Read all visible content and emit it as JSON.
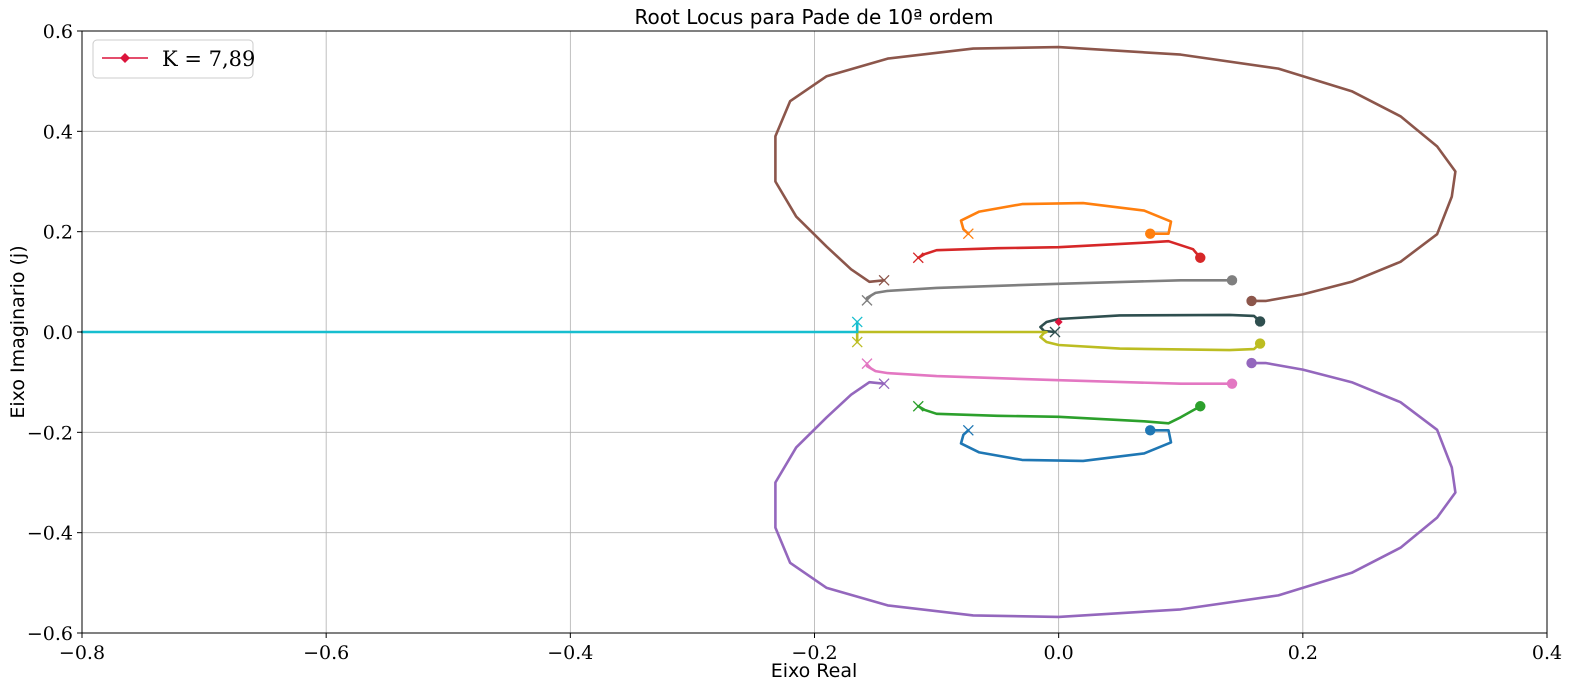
{
  "chart_data": {
    "type": "line",
    "title": "Root Locus para Pade de 10ª ordem",
    "xlabel": "Eixo Real",
    "ylabel": "Eixo Imaginario (j)",
    "xlim": [
      -0.8,
      0.4
    ],
    "ylim": [
      -0.6,
      0.6
    ],
    "xticks": [
      -0.8,
      -0.6,
      -0.4,
      -0.2,
      0.0,
      0.2,
      0.4
    ],
    "xtick_labels": [
      "−0.8",
      "−0.6",
      "−0.4",
      "−0.2",
      "0.0",
      "0.2",
      "0.4"
    ],
    "yticks": [
      -0.6,
      -0.4,
      -0.2,
      0.0,
      0.2,
      0.4,
      0.6
    ],
    "ytick_labels": [
      "−0.6",
      "−0.4",
      "−0.2",
      "0.0",
      "0.2",
      "0.4",
      "0.6"
    ],
    "grid": true,
    "legend": {
      "placement": "top-left",
      "label": "K = 7,89",
      "color": "#dc143c"
    },
    "series": [
      {
        "color": "#9467bd",
        "points": [
          [
            0.158,
            -0.062
          ],
          [
            0.17,
            -0.062
          ],
          [
            0.2,
            -0.075
          ],
          [
            0.24,
            -0.1
          ],
          [
            0.28,
            -0.14
          ],
          [
            0.31,
            -0.195
          ],
          [
            0.322,
            -0.27
          ],
          [
            0.325,
            -0.32
          ],
          [
            0.31,
            -0.37
          ],
          [
            0.28,
            -0.43
          ],
          [
            0.24,
            -0.48
          ],
          [
            0.18,
            -0.525
          ],
          [
            0.1,
            -0.553
          ],
          [
            0.0,
            -0.568
          ],
          [
            -0.07,
            -0.565
          ],
          [
            -0.14,
            -0.545
          ],
          [
            -0.19,
            -0.51
          ],
          [
            -0.22,
            -0.46
          ],
          [
            -0.232,
            -0.39
          ],
          [
            -0.232,
            -0.3
          ],
          [
            -0.215,
            -0.23
          ],
          [
            -0.19,
            -0.17
          ],
          [
            -0.17,
            -0.125
          ],
          [
            -0.155,
            -0.1
          ],
          [
            -0.143,
            -0.103
          ]
        ]
      },
      {
        "color": "#8c564b",
        "points": [
          [
            0.158,
            0.062
          ],
          [
            0.17,
            0.062
          ],
          [
            0.2,
            0.075
          ],
          [
            0.24,
            0.1
          ],
          [
            0.28,
            0.14
          ],
          [
            0.31,
            0.195
          ],
          [
            0.322,
            0.27
          ],
          [
            0.325,
            0.32
          ],
          [
            0.31,
            0.37
          ],
          [
            0.28,
            0.43
          ],
          [
            0.24,
            0.48
          ],
          [
            0.18,
            0.525
          ],
          [
            0.1,
            0.553
          ],
          [
            0.0,
            0.568
          ],
          [
            -0.07,
            0.565
          ],
          [
            -0.14,
            0.545
          ],
          [
            -0.19,
            0.51
          ],
          [
            -0.22,
            0.46
          ],
          [
            -0.232,
            0.39
          ],
          [
            -0.232,
            0.3
          ],
          [
            -0.215,
            0.23
          ],
          [
            -0.19,
            0.17
          ],
          [
            -0.17,
            0.125
          ],
          [
            -0.155,
            0.1
          ],
          [
            -0.143,
            0.103
          ]
        ]
      },
      {
        "color": "#ff7f0e",
        "points": [
          [
            0.075,
            0.196
          ],
          [
            0.09,
            0.196
          ],
          [
            0.092,
            0.22
          ],
          [
            0.07,
            0.242
          ],
          [
            0.02,
            0.257
          ],
          [
            -0.03,
            0.255
          ],
          [
            -0.065,
            0.24
          ],
          [
            -0.08,
            0.222
          ],
          [
            -0.078,
            0.205
          ],
          [
            -0.074,
            0.196
          ]
        ]
      },
      {
        "color": "#1f77b4",
        "points": [
          [
            0.075,
            -0.196
          ],
          [
            0.09,
            -0.196
          ],
          [
            0.092,
            -0.22
          ],
          [
            0.07,
            -0.242
          ],
          [
            0.02,
            -0.257
          ],
          [
            -0.03,
            -0.255
          ],
          [
            -0.065,
            -0.24
          ],
          [
            -0.08,
            -0.222
          ],
          [
            -0.078,
            -0.205
          ],
          [
            -0.074,
            -0.196
          ]
        ]
      },
      {
        "color": "#d62728",
        "points": [
          [
            0.116,
            0.148
          ],
          [
            0.11,
            0.165
          ],
          [
            0.09,
            0.181
          ],
          [
            0.07,
            0.178
          ],
          [
            0.0,
            0.169
          ],
          [
            -0.05,
            0.167
          ],
          [
            -0.1,
            0.163
          ],
          [
            -0.11,
            0.155
          ],
          [
            -0.115,
            0.148
          ]
        ]
      },
      {
        "color": "#2ca02c",
        "points": [
          [
            0.116,
            -0.148
          ],
          [
            0.1,
            -0.17
          ],
          [
            0.09,
            -0.182
          ],
          [
            0.07,
            -0.178
          ],
          [
            0.0,
            -0.169
          ],
          [
            -0.05,
            -0.167
          ],
          [
            -0.1,
            -0.163
          ],
          [
            -0.11,
            -0.155
          ],
          [
            -0.115,
            -0.148
          ]
        ]
      },
      {
        "color": "#7f7f7f",
        "points": [
          [
            0.142,
            0.103
          ],
          [
            0.1,
            0.103
          ],
          [
            0.0,
            0.096
          ],
          [
            -0.1,
            0.088
          ],
          [
            -0.14,
            0.082
          ],
          [
            -0.15,
            0.078
          ],
          [
            -0.157,
            0.068
          ],
          [
            -0.157,
            0.063
          ]
        ]
      },
      {
        "color": "#e377c2",
        "points": [
          [
            0.142,
            -0.103
          ],
          [
            0.1,
            -0.103
          ],
          [
            0.0,
            -0.096
          ],
          [
            -0.1,
            -0.088
          ],
          [
            -0.14,
            -0.082
          ],
          [
            -0.15,
            -0.078
          ],
          [
            -0.157,
            -0.068
          ],
          [
            -0.157,
            -0.063
          ]
        ]
      },
      {
        "color": "#2f4f4f",
        "points": [
          [
            0.165,
            0.021
          ],
          [
            0.16,
            0.032
          ],
          [
            0.14,
            0.034
          ],
          [
            0.05,
            0.033
          ],
          [
            0.0,
            0.026
          ],
          [
            -0.01,
            0.02
          ],
          [
            -0.015,
            0.01
          ],
          [
            -0.012,
            0.002
          ],
          [
            -0.003,
            0.0
          ]
        ]
      },
      {
        "color": "#bcbd22",
        "points": [
          [
            0.165,
            -0.023
          ],
          [
            0.16,
            -0.034
          ],
          [
            0.14,
            -0.036
          ],
          [
            0.05,
            -0.033
          ],
          [
            0.0,
            -0.026
          ],
          [
            -0.01,
            -0.02
          ],
          [
            -0.015,
            -0.01
          ],
          [
            -0.012,
            -0.002
          ],
          [
            -0.01,
            0.0
          ],
          [
            -0.165,
            0.0
          ],
          [
            -0.165,
            -0.02
          ]
        ]
      },
      {
        "color": "#17becf",
        "points": [
          [
            -0.165,
            0.02
          ],
          [
            -0.165,
            0.0
          ],
          [
            -0.8,
            0.0
          ]
        ]
      }
    ],
    "poles": [
      {
        "x": -0.074,
        "y": 0.196,
        "color": "#ff7f0e"
      },
      {
        "x": -0.074,
        "y": -0.196,
        "color": "#1f77b4"
      },
      {
        "x": -0.115,
        "y": 0.148,
        "color": "#d62728"
      },
      {
        "x": -0.115,
        "y": -0.148,
        "color": "#2ca02c"
      },
      {
        "x": -0.143,
        "y": 0.103,
        "color": "#8c564b"
      },
      {
        "x": -0.143,
        "y": -0.103,
        "color": "#9467bd"
      },
      {
        "x": -0.157,
        "y": 0.063,
        "color": "#7f7f7f"
      },
      {
        "x": -0.157,
        "y": -0.063,
        "color": "#e377c2"
      },
      {
        "x": -0.165,
        "y": 0.02,
        "color": "#17becf"
      },
      {
        "x": -0.165,
        "y": -0.02,
        "color": "#bcbd22"
      },
      {
        "x": -0.003,
        "y": 0.0,
        "color": "#2f4f4f"
      }
    ],
    "zeros": [
      {
        "x": 0.075,
        "y": 0.196,
        "color": "#ff7f0e"
      },
      {
        "x": 0.075,
        "y": -0.196,
        "color": "#1f77b4"
      },
      {
        "x": 0.116,
        "y": 0.148,
        "color": "#d62728"
      },
      {
        "x": 0.116,
        "y": -0.148,
        "color": "#2ca02c"
      },
      {
        "x": 0.142,
        "y": 0.103,
        "color": "#7f7f7f"
      },
      {
        "x": 0.142,
        "y": -0.103,
        "color": "#e377c2"
      },
      {
        "x": 0.158,
        "y": 0.062,
        "color": "#8c564b"
      },
      {
        "x": 0.158,
        "y": -0.062,
        "color": "#9467bd"
      },
      {
        "x": 0.165,
        "y": 0.021,
        "color": "#2f4f4f"
      },
      {
        "x": 0.165,
        "y": -0.023,
        "color": "#bcbd22"
      }
    ],
    "selected_point": {
      "x": 0.0,
      "y": 0.02,
      "color": "#dc143c"
    }
  }
}
